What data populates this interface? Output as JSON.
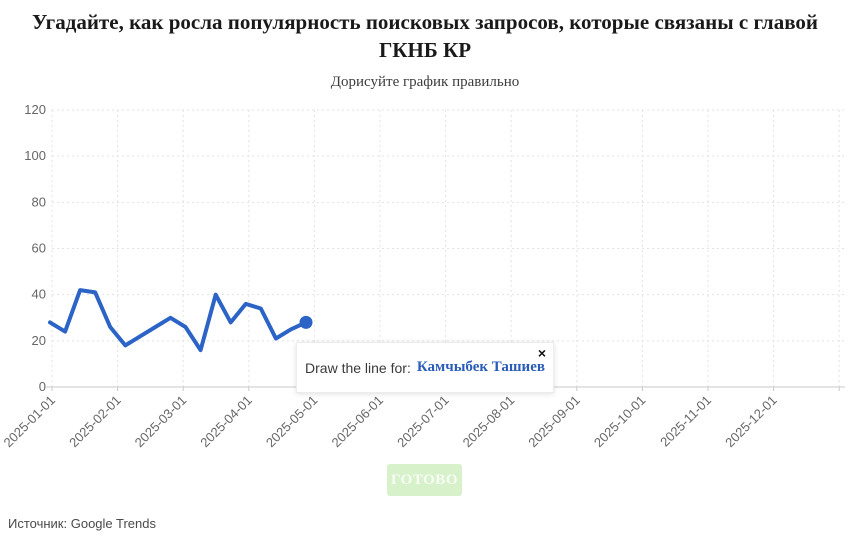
{
  "header": {
    "title": "Угадайте, как росла популярность поисковых запросов, которые связаны с главой ГКНБ КР",
    "subtitle": "Дорисуйте график правильно"
  },
  "tooltip": {
    "prompt": "Draw the line for:",
    "entity": "Камчыбек Ташиев",
    "close_icon": "×"
  },
  "controls": {
    "done_button": "ГОТОВО"
  },
  "footer": {
    "source": "Источник: Google Trends"
  },
  "chart_data": {
    "type": "line",
    "title": "",
    "xlabel": "",
    "ylabel": "",
    "ylim": [
      0,
      120
    ],
    "yticks": [
      0,
      20,
      40,
      60,
      80,
      100,
      120
    ],
    "grid": true,
    "x_axis_labels": [
      "2025-01-01",
      "2025-02-01",
      "2025-03-01",
      "2025-04-01",
      "2025-05-01",
      "2025-06-01",
      "2025-07-01",
      "2025-08-01",
      "2025-09-01",
      "2025-10-01",
      "2025-11-01",
      "2025-12-01"
    ],
    "series": [
      {
        "name": "Камчыбек Ташиев",
        "x": [
          "2025-01-01",
          "2025-01-08",
          "2025-01-15",
          "2025-01-22",
          "2025-01-29",
          "2025-02-05",
          "2025-02-12",
          "2025-02-19",
          "2025-02-26",
          "2025-03-05",
          "2025-03-12",
          "2025-03-19",
          "2025-03-26",
          "2025-04-02",
          "2025-04-09",
          "2025-04-16",
          "2025-04-23",
          "2025-04-30"
        ],
        "values": [
          28,
          24,
          42,
          41,
          26,
          18,
          22,
          26,
          30,
          26,
          16,
          40,
          28,
          36,
          34,
          21,
          25,
          28
        ]
      }
    ],
    "line_color": "#2b63c6",
    "grid_color": "#e3e3e3",
    "axis_color": "#c9c9c9",
    "tick_label_color": "#666666",
    "endpoint_dot": true,
    "note": "user must draw the remainder of the line from 2025-05-01 to 2025-12-01"
  }
}
